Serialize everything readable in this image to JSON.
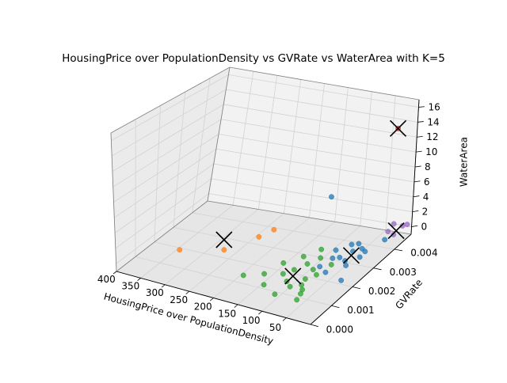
{
  "chart_data": {
    "type": "scatter",
    "title": "HousingPrice over PopulationDensity vs GVRate vs WaterArea with K=5",
    "xlabel": "HousingPrice over PopulationDensity",
    "ylabel": "GVRate",
    "zlabel": "WaterArea",
    "xlim": [
      0,
      400
    ],
    "ylim": [
      0,
      0.0048
    ],
    "zlim": [
      -1,
      17
    ],
    "xticks": [
      "400",
      "350",
      "300",
      "250",
      "200",
      "150",
      "100",
      "50"
    ],
    "yticks": [
      "0.000",
      "0.001",
      "0.002",
      "0.003",
      "0.004"
    ],
    "zticks": [
      "0",
      "2",
      "4",
      "6",
      "8",
      "10",
      "12",
      "14",
      "16"
    ],
    "grid": true,
    "clusters": [
      {
        "color": "#1f77b4",
        "points": [
          [
            40,
            0.0034,
            0
          ],
          [
            30,
            0.0033,
            0
          ],
          [
            28,
            0.003,
            0
          ],
          [
            55,
            0.0036,
            0
          ],
          [
            50,
            0.0032,
            0
          ],
          [
            45,
            0.0027,
            0
          ],
          [
            60,
            0.0028,
            0
          ],
          [
            35,
            0.0025,
            0
          ],
          [
            70,
            0.0027,
            0
          ],
          [
            80,
            0.0031,
            0
          ],
          [
            65,
            0.0035,
            0
          ],
          [
            75,
            0.0022,
            0
          ],
          [
            55,
            0.002,
            0
          ],
          [
            20,
            0.004,
            0
          ],
          [
            15,
            0.0018,
            0
          ],
          [
            150,
            0.0045,
            3
          ]
        ]
      },
      {
        "color": "#ff7f0e",
        "points": [
          [
            330,
            0.0015,
            0
          ],
          [
            260,
            0.002,
            0
          ],
          [
            230,
            0.003,
            0
          ],
          [
            220,
            0.0035,
            0
          ]
        ]
      },
      {
        "color": "#2ca02c",
        "points": [
          [
            180,
            0.001,
            0
          ],
          [
            150,
            0.0013,
            0
          ],
          [
            130,
            0.0008,
            0
          ],
          [
            120,
            0.0015,
            0
          ],
          [
            110,
            0.0018,
            0
          ],
          [
            100,
            0.0012,
            0
          ],
          [
            95,
            0.0005,
            0
          ],
          [
            85,
            0.001,
            0
          ],
          [
            80,
            0.002,
            0
          ],
          [
            75,
            0.0015,
            0
          ],
          [
            70,
            0.0012,
            0
          ],
          [
            65,
            0.0018,
            0
          ],
          [
            60,
            0.001,
            0
          ],
          [
            55,
            0.0008,
            0
          ],
          [
            50,
            0.0005,
            0
          ],
          [
            100,
            0.0022,
            0
          ],
          [
            90,
            0.0026,
            0
          ],
          [
            60,
            0.0024,
            0
          ],
          [
            140,
            0.002,
            0
          ],
          [
            120,
            0.0025,
            0
          ],
          [
            105,
            0.003,
            0
          ]
        ]
      },
      {
        "color": "#d62728",
        "points": [
          [
            5,
            0.004,
            14.5
          ]
        ]
      },
      {
        "color": "#9467bd",
        "points": [
          [
            15,
            0.0043,
            0
          ],
          [
            10,
            0.0046,
            0.5
          ],
          [
            5,
            0.0047,
            0.5
          ],
          [
            30,
            0.0044,
            0
          ],
          [
            35,
            0.0048,
            0
          ]
        ]
      }
    ],
    "centroids": [
      [
        45,
        0.003,
        0
      ],
      [
        280,
        0.0025,
        0
      ],
      [
        100,
        0.0015,
        0
      ],
      [
        5,
        0.004,
        14.5
      ],
      [
        18,
        0.0045,
        0
      ]
    ]
  }
}
